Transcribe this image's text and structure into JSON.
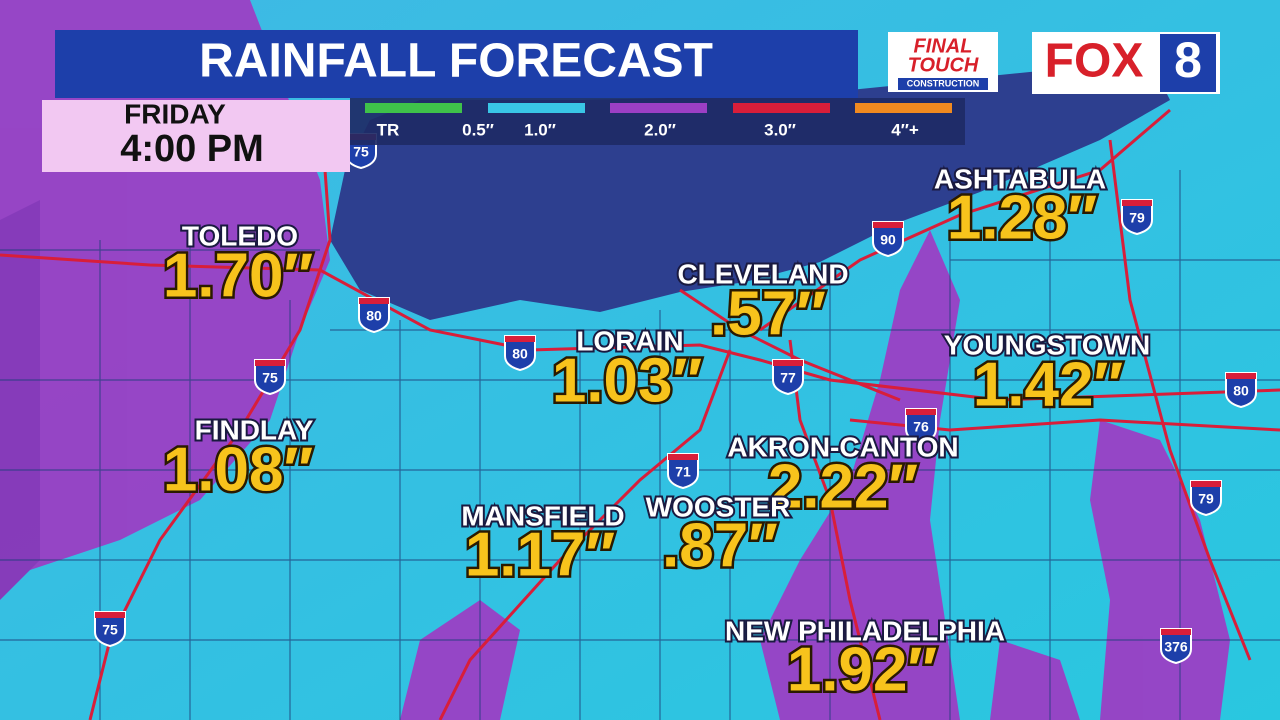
{
  "header": {
    "title": "RAINFALL FORECAST",
    "sponsor": [
      "FINAL",
      "TOUCH",
      "CONSTRUCTION"
    ],
    "station": [
      "FOX",
      "8"
    ]
  },
  "valid_time": {
    "day": "FRIDAY",
    "time": "4:00 PM"
  },
  "legend": [
    "TR",
    "0.5″",
    "1.0″",
    "2.0″",
    "3.0″",
    "4″+"
  ],
  "cities": [
    {
      "name": "TOLEDO",
      "amount": "1.70″"
    },
    {
      "name": "FINDLAY",
      "amount": "1.08″"
    },
    {
      "name": "LORAIN",
      "amount": "1.03″"
    },
    {
      "name": "CLEVELAND",
      "amount": ".57″"
    },
    {
      "name": "ASHTABULA",
      "amount": "1.28″"
    },
    {
      "name": "YOUNGSTOWN",
      "amount": "1.42″"
    },
    {
      "name": "AKRON-CANTON",
      "amount": "2.22″"
    },
    {
      "name": "MANSFIELD",
      "amount": "1.17″"
    },
    {
      "name": "WOOSTER",
      "amount": ".87″"
    },
    {
      "name": "NEW PHILADELPHIA",
      "amount": "1.92″"
    }
  ],
  "highways": [
    "75",
    "80",
    "75",
    "80",
    "90",
    "79",
    "77",
    "76",
    "80",
    "71",
    "79",
    "75",
    "376"
  ]
}
